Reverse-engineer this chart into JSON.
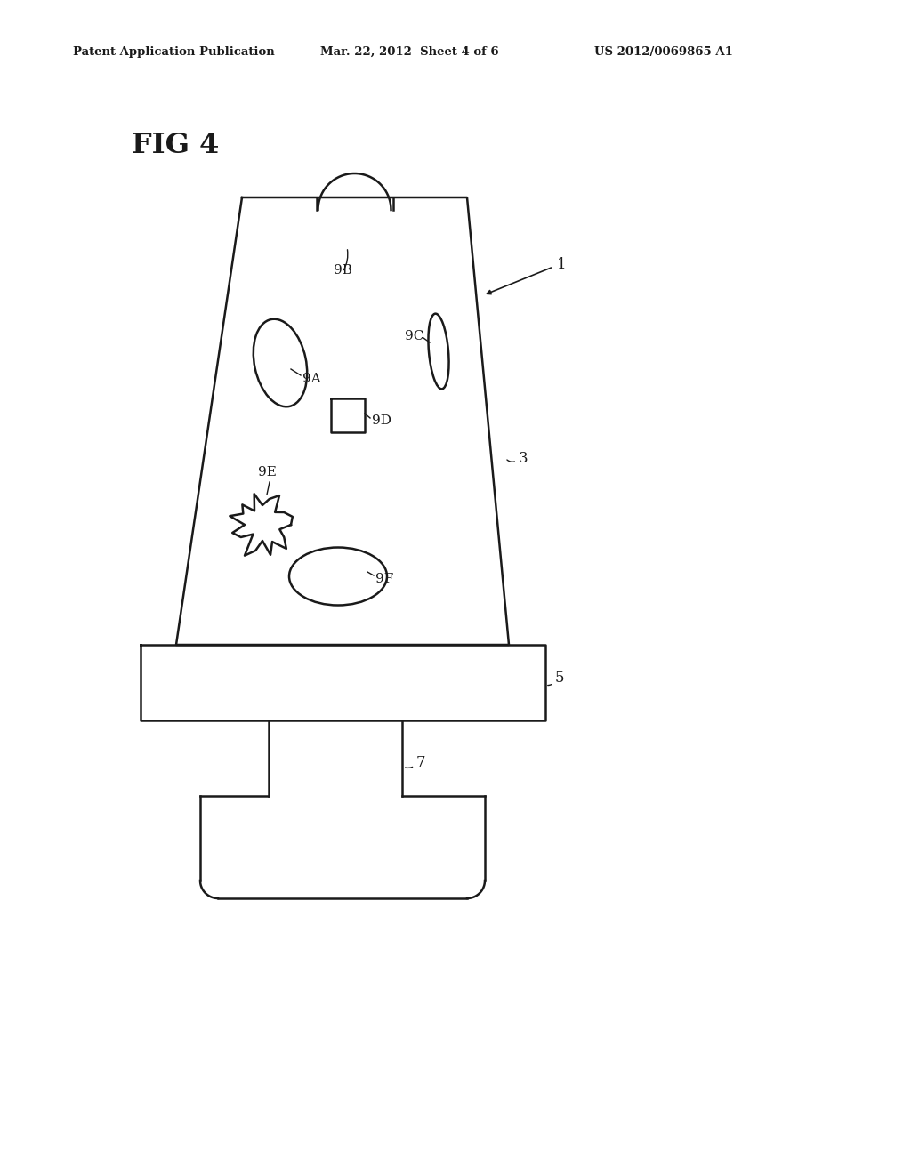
{
  "bg_color": "#ffffff",
  "line_color": "#1a1a1a",
  "line_width": 1.8,
  "header_left": "Patent Application Publication",
  "header_center": "Mar. 22, 2012  Sheet 4 of 6",
  "header_right": "US 2012/0069865 A1",
  "fig_label": "FIG 4",
  "label_1": "1",
  "label_3": "3",
  "label_5": "5",
  "label_7": "7",
  "label_9B": "9B",
  "label_9A": "9A",
  "label_9C": "9C",
  "label_9D": "9D",
  "label_9E": "9E",
  "label_9F": "9F"
}
